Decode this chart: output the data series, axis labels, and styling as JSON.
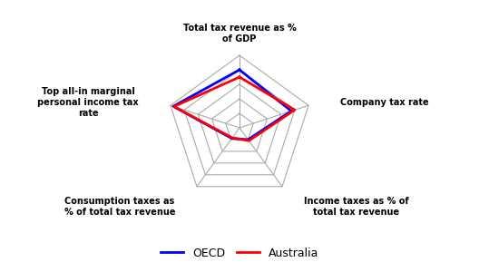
{
  "categories": [
    "Total tax revenue as %\nof GDP",
    "Company tax rate",
    "Income taxes as % of\ntotal tax revenue",
    "Consumption taxes as\n% of total tax revenue",
    "Top all-in marginal\npersonal income tax\nrate"
  ],
  "OECD": [
    0.8,
    0.75,
    0.2,
    0.18,
    0.96
  ],
  "Australia": [
    0.7,
    0.8,
    0.22,
    0.17,
    0.95
  ],
  "oecd_color": "#0000FF",
  "australia_color": "#FF0000",
  "grid_color": "#AAAAAA",
  "background_color": "#FFFFFF",
  "n_rings": 5,
  "legend_labels": [
    "OECD",
    "Australia"
  ]
}
